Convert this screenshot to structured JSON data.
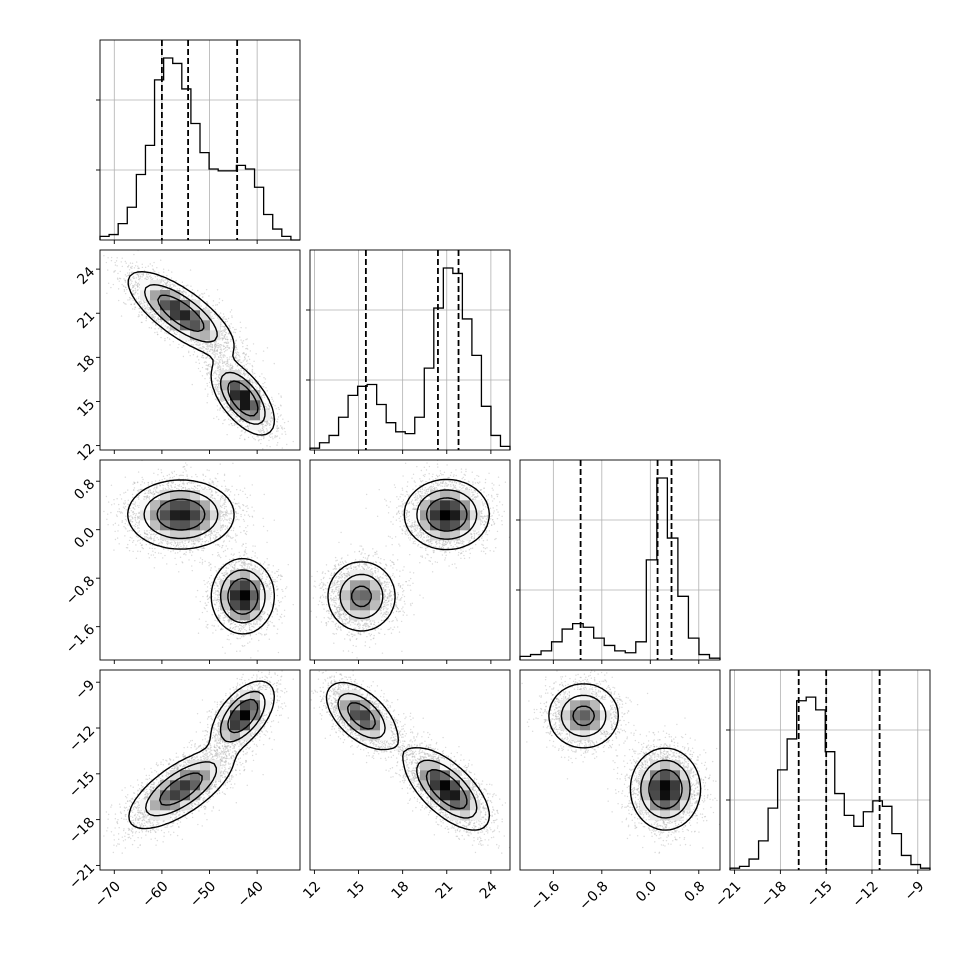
{
  "chart_data": {
    "type": "corner",
    "title": "",
    "parameters": [
      {
        "range": [
          -73,
          -31
        ],
        "ticks": [
          -70,
          -60,
          -50,
          -40
        ],
        "tick_labels": [
          "−70",
          "−60",
          "−50",
          "−40"
        ],
        "quantiles": [
          -60,
          -54.5,
          -44.2
        ]
      },
      {
        "range": [
          11.7,
          25.3
        ],
        "ticks": [
          12,
          15,
          18,
          21,
          24
        ],
        "tick_labels": [
          "12",
          "15",
          "18",
          "21",
          "24"
        ],
        "quantiles": [
          15.5,
          20.4,
          21.8
        ]
      },
      {
        "range": [
          -2.15,
          1.15
        ],
        "ticks": [
          -1.6,
          -0.8,
          0.0,
          0.8
        ],
        "tick_labels": [
          "−1.6",
          "−0.8",
          "0.0",
          "0.8"
        ],
        "quantiles": [
          -1.15,
          0.12,
          0.35
        ]
      },
      {
        "range": [
          -21.3,
          -8.2
        ],
        "ticks": [
          -21,
          -18,
          -15,
          -12,
          -9
        ],
        "tick_labels": [
          "−21",
          "−18",
          "−15",
          "−12",
          "−9"
        ],
        "quantiles": [
          -16.8,
          -15.0,
          -11.5
        ]
      }
    ],
    "histograms": [
      {
        "density": [
          0.02,
          0.03,
          0.09,
          0.18,
          0.36,
          0.52,
          0.88,
          1.0,
          0.97,
          0.83,
          0.64,
          0.48,
          0.39,
          0.38,
          0.38,
          0.41,
          0.39,
          0.29,
          0.14,
          0.06,
          0.02,
          0.0
        ]
      },
      {
        "density": [
          0.01,
          0.04,
          0.08,
          0.18,
          0.3,
          0.35,
          0.36,
          0.25,
          0.15,
          0.1,
          0.09,
          0.18,
          0.45,
          0.78,
          1.0,
          0.97,
          0.72,
          0.52,
          0.24,
          0.08,
          0.02
        ]
      },
      {
        "density": [
          0.02,
          0.03,
          0.05,
          0.1,
          0.17,
          0.2,
          0.18,
          0.12,
          0.08,
          0.05,
          0.04,
          0.1,
          0.55,
          1.0,
          0.67,
          0.35,
          0.12,
          0.03,
          0.01
        ]
      },
      {
        "density": [
          0.01,
          0.02,
          0.06,
          0.16,
          0.34,
          0.55,
          0.72,
          0.93,
          0.95,
          0.88,
          0.65,
          0.42,
          0.3,
          0.24,
          0.32,
          0.38,
          0.35,
          0.2,
          0.08,
          0.03,
          0.01
        ]
      }
    ],
    "modes": [
      {
        "weight": 0.6,
        "mean": [
          -56,
          21,
          0.25,
          -16
        ],
        "sd": [
          5.5,
          1.4,
          0.28,
          1.3
        ],
        "rho": [
          [
            1,
            -0.75,
            0,
            0.7
          ],
          [
            -0.75,
            1,
            0,
            -0.65
          ],
          [
            0,
            0,
            1,
            0
          ],
          [
            0.7,
            -0.65,
            0,
            1
          ]
        ]
      },
      {
        "weight": 0.4,
        "mean": [
          -43,
          15.2,
          -1.1,
          -11.2
        ],
        "sd": [
          3.2,
          1.2,
          0.3,
          1.1
        ],
        "rho": [
          [
            1,
            -0.6,
            0,
            0.55
          ],
          [
            -0.6,
            1,
            0,
            -0.55
          ],
          [
            0,
            0,
            1,
            0
          ],
          [
            0.55,
            -0.55,
            0,
            1
          ]
        ]
      }
    ],
    "grid": true
  }
}
